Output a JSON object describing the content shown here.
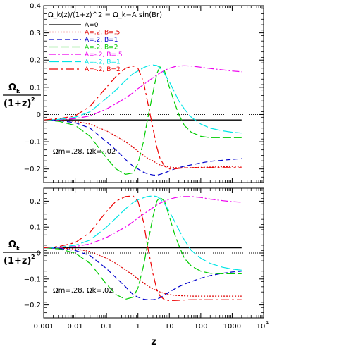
{
  "figure": {
    "ylabel_num": "Ω",
    "ylabel_num_sub": "k",
    "ylabel_den": "(1+z)",
    "ylabel_den_sup": "2",
    "xlabel": "z",
    "xtick_labels": [
      "0.001",
      "0.01",
      "0.1",
      "1",
      "10",
      "100",
      "1000",
      "10"
    ],
    "xtick_last_sup": "4"
  },
  "legend": {
    "formula": "Ω_k(z)/(1+z)^2 = Ω_k−A sin(Br)",
    "entries": [
      {
        "label": "A=0",
        "color": "#000000"
      },
      {
        "label": "A=.2, B=.5",
        "color": "#dd0000"
      },
      {
        "label": "A=.2, B=1",
        "color": "#0000cc"
      },
      {
        "label": "A=.2, B=2",
        "color": "#00cc00"
      },
      {
        "label": "A=-.2, B=.5",
        "color": "#ee00ee"
      },
      {
        "label": "A=-.2, B=1",
        "color": "#00e5e5"
      },
      {
        "label": "A=-.2, B=2",
        "color": "#ee0000"
      }
    ]
  },
  "chart_data": [
    {
      "type": "line",
      "annotation": "Ωm=.28, Ωk=-.02",
      "xscale": "log",
      "xlim": [
        0.001,
        10000
      ],
      "ylim": [
        -0.25,
        0.4
      ],
      "yticks": [
        -0.2,
        -0.1,
        0,
        0.1,
        0.2,
        0.3,
        0.4
      ],
      "ytick_labels": [
        "−0.2",
        "−0.1",
        "0",
        "0.1",
        "0.2",
        "0.3",
        "0.4"
      ],
      "x": [
        0.001,
        0.003,
        0.01,
        0.03,
        0.1,
        0.2,
        0.4,
        0.7,
        1,
        1.5,
        2,
        3,
        4,
        5,
        7,
        10,
        15,
        20,
        30,
        50,
        100,
        200,
        500,
        1000,
        2000
      ],
      "series": [
        {
          "name": "A=0",
          "values": [
            -0.02,
            -0.02,
            -0.02,
            -0.02,
            -0.02,
            -0.02,
            -0.02,
            -0.02,
            -0.02,
            -0.02,
            -0.02,
            -0.02,
            -0.02,
            -0.02,
            -0.02,
            -0.02,
            -0.02,
            -0.02,
            -0.02,
            -0.02,
            -0.02,
            -0.02,
            -0.02,
            -0.02,
            -0.02
          ]
        },
        {
          "name": "A=.2, B=.5",
          "values": [
            -0.02,
            -0.021,
            -0.025,
            -0.035,
            -0.06,
            -0.08,
            -0.1,
            -0.12,
            -0.135,
            -0.15,
            -0.16,
            -0.17,
            -0.18,
            -0.185,
            -0.19,
            -0.193,
            -0.195,
            -0.196,
            -0.196,
            -0.195,
            -0.194,
            -0.193,
            -0.192,
            -0.191,
            -0.19
          ]
        },
        {
          "name": "A=.2, B=1",
          "values": [
            -0.02,
            -0.022,
            -0.03,
            -0.05,
            -0.1,
            -0.13,
            -0.165,
            -0.19,
            -0.2,
            -0.212,
            -0.218,
            -0.222,
            -0.223,
            -0.22,
            -0.215,
            -0.207,
            -0.2,
            -0.195,
            -0.19,
            -0.185,
            -0.178,
            -0.172,
            -0.168,
            -0.165,
            -0.162
          ]
        },
        {
          "name": "A=.2, B=2",
          "values": [
            -0.02,
            -0.025,
            -0.04,
            -0.08,
            -0.16,
            -0.2,
            -0.22,
            -0.215,
            -0.18,
            -0.1,
            -0.02,
            0.08,
            0.15,
            0.175,
            0.16,
            0.1,
            0.04,
            0.0,
            -0.04,
            -0.065,
            -0.08,
            -0.085,
            -0.085,
            -0.085,
            -0.085
          ]
        },
        {
          "name": "A=-.2, B=.5",
          "values": [
            -0.02,
            -0.019,
            -0.015,
            -0.005,
            0.02,
            0.04,
            0.06,
            0.08,
            0.095,
            0.11,
            0.12,
            0.135,
            0.145,
            0.152,
            0.162,
            0.17,
            0.176,
            0.178,
            0.179,
            0.178,
            0.174,
            0.169,
            0.164,
            0.16,
            0.157
          ]
        },
        {
          "name": "A=-.2, B=1",
          "values": [
            -0.02,
            -0.018,
            -0.01,
            0.01,
            0.06,
            0.09,
            0.125,
            0.15,
            0.16,
            0.172,
            0.178,
            0.182,
            0.18,
            0.172,
            0.15,
            0.12,
            0.08,
            0.05,
            0.02,
            -0.01,
            -0.035,
            -0.05,
            -0.06,
            -0.065,
            -0.068
          ]
        },
        {
          "name": "A=-.2, B=2",
          "values": [
            -0.02,
            -0.015,
            -0.005,
            0.03,
            0.1,
            0.14,
            0.17,
            0.178,
            0.17,
            0.12,
            0.05,
            -0.05,
            -0.12,
            -0.16,
            -0.19,
            -0.2,
            -0.2,
            -0.198,
            -0.196,
            -0.196,
            -0.195,
            -0.195,
            -0.195,
            -0.195,
            -0.195
          ]
        }
      ]
    },
    {
      "type": "line",
      "annotation": "Ωm=.28, Ωk=.02",
      "xscale": "log",
      "xlim": [
        0.001,
        10000
      ],
      "ylim": [
        -0.25,
        0.25
      ],
      "yticks": [
        -0.2,
        -0.1,
        0,
        0.1,
        0.2
      ],
      "ytick_labels": [
        "−0.2",
        "−0.1",
        "0",
        "0.1",
        "0.2"
      ],
      "x": [
        0.001,
        0.003,
        0.01,
        0.03,
        0.1,
        0.2,
        0.4,
        0.7,
        1,
        1.5,
        2,
        3,
        4,
        5,
        7,
        10,
        15,
        20,
        30,
        50,
        100,
        200,
        500,
        1000,
        2000
      ],
      "series": [
        {
          "name": "A=0",
          "values": [
            0.02,
            0.02,
            0.02,
            0.02,
            0.02,
            0.02,
            0.02,
            0.02,
            0.02,
            0.02,
            0.02,
            0.02,
            0.02,
            0.02,
            0.02,
            0.02,
            0.02,
            0.02,
            0.02,
            0.02,
            0.02,
            0.02,
            0.02,
            0.02,
            0.02
          ]
        },
        {
          "name": "A=.2, B=.5",
          "values": [
            0.02,
            0.019,
            0.016,
            0.006,
            -0.02,
            -0.04,
            -0.065,
            -0.085,
            -0.1,
            -0.115,
            -0.125,
            -0.138,
            -0.145,
            -0.15,
            -0.156,
            -0.16,
            -0.163,
            -0.164,
            -0.165,
            -0.166,
            -0.166,
            -0.166,
            -0.166,
            -0.166,
            -0.166
          ]
        },
        {
          "name": "A=.2, B=1",
          "values": [
            0.02,
            0.018,
            0.01,
            -0.01,
            -0.06,
            -0.095,
            -0.13,
            -0.16,
            -0.17,
            -0.178,
            -0.18,
            -0.18,
            -0.178,
            -0.172,
            -0.162,
            -0.15,
            -0.138,
            -0.13,
            -0.12,
            -0.11,
            -0.097,
            -0.087,
            -0.078,
            -0.073,
            -0.07
          ]
        },
        {
          "name": "A=.2, B=2",
          "values": [
            0.02,
            0.016,
            0.0,
            -0.04,
            -0.12,
            -0.16,
            -0.178,
            -0.17,
            -0.135,
            -0.05,
            0.03,
            0.14,
            0.2,
            0.215,
            0.2,
            0.14,
            0.07,
            0.03,
            -0.02,
            -0.05,
            -0.07,
            -0.078,
            -0.08,
            -0.08,
            -0.08
          ]
        },
        {
          "name": "A=-.2, B=.5",
          "values": [
            0.02,
            0.021,
            0.025,
            0.035,
            0.06,
            0.08,
            0.1,
            0.12,
            0.135,
            0.15,
            0.16,
            0.175,
            0.185,
            0.192,
            0.2,
            0.207,
            0.213,
            0.216,
            0.218,
            0.218,
            0.214,
            0.208,
            0.202,
            0.198,
            0.196
          ]
        },
        {
          "name": "A=-.2, B=1",
          "values": [
            0.02,
            0.022,
            0.03,
            0.05,
            0.1,
            0.135,
            0.17,
            0.195,
            0.205,
            0.213,
            0.218,
            0.22,
            0.218,
            0.21,
            0.19,
            0.16,
            0.12,
            0.09,
            0.05,
            0.01,
            -0.02,
            -0.04,
            -0.055,
            -0.062,
            -0.066
          ]
        },
        {
          "name": "A=-.2, B=2",
          "values": [
            0.02,
            0.025,
            0.04,
            0.08,
            0.16,
            0.2,
            0.218,
            0.22,
            0.2,
            0.12,
            0.03,
            -0.08,
            -0.14,
            -0.165,
            -0.18,
            -0.183,
            -0.183,
            -0.182,
            -0.181,
            -0.18,
            -0.18,
            -0.18,
            -0.18,
            -0.18,
            -0.18
          ]
        }
      ]
    }
  ]
}
